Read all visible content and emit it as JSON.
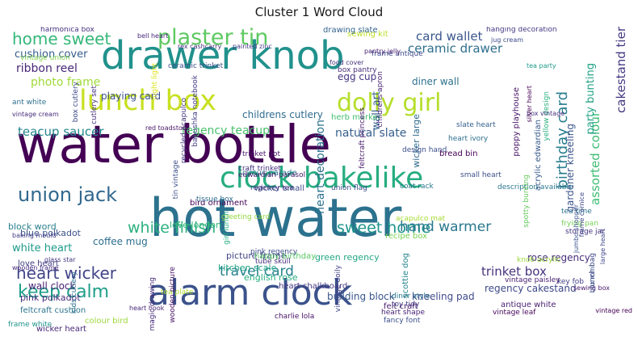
{
  "chart_data": {
    "type": "wordcloud",
    "title": "Cluster 1 Word Cloud",
    "colormap": "viridis",
    "background": "#ffffff",
    "words": [
      {
        "text": "hot water",
        "weight": 100,
        "color": "#2c728e"
      },
      {
        "text": "water bottle",
        "weight": 98,
        "color": "#440154"
      },
      {
        "text": "drawer knob",
        "weight": 70,
        "color": "#21918c"
      },
      {
        "text": "alarm clock",
        "weight": 63,
        "color": "#3b528b"
      },
      {
        "text": "clock bakelike",
        "weight": 50,
        "color": "#27ad81"
      },
      {
        "text": "lunch box",
        "weight": 48,
        "color": "#c8e020"
      },
      {
        "text": "dolly girl",
        "weight": 40,
        "color": "#b5de2b"
      },
      {
        "text": "plaster tin",
        "weight": 35,
        "color": "#5ec962"
      },
      {
        "text": "union jack",
        "weight": 30,
        "color": "#31688e"
      },
      {
        "text": "keep calm",
        "weight": 26,
        "color": "#1f9e89"
      },
      {
        "text": "heart wicker",
        "weight": 23,
        "color": "#414487"
      },
      {
        "text": "home sweet",
        "weight": 22,
        "color": "#35b779"
      },
      {
        "text": "white finish",
        "weight": 20,
        "color": "#2db27d"
      },
      {
        "text": "sweet home",
        "weight": 20,
        "color": "#1f948c"
      },
      {
        "text": "travel card",
        "weight": 18,
        "color": "#26828e"
      },
      {
        "text": "hand warmer",
        "weight": 17,
        "color": "#2a788e"
      },
      {
        "text": "birthday card",
        "weight": 19,
        "color": "#287d8e"
      },
      {
        "text": "card wallet",
        "weight": 13,
        "color": "#39568c"
      },
      {
        "text": "ceramic drawer",
        "weight": 13,
        "color": "#2e6f8e"
      },
      {
        "text": "cakestand tier",
        "weight": 14,
        "color": "#443a83"
      },
      {
        "text": "trinket box",
        "weight": 14,
        "color": "#46327e"
      },
      {
        "text": "regency teacup",
        "weight": 12,
        "color": "#4ac16d"
      },
      {
        "text": "teacup saucer",
        "weight": 13,
        "color": "#24868e"
      },
      {
        "text": "photo frame",
        "weight": 12,
        "color": "#a0da39"
      },
      {
        "text": "ribbon reel",
        "weight": 12,
        "color": "#482677"
      },
      {
        "text": "cushion cover",
        "weight": 11,
        "color": "#365d8d"
      },
      {
        "text": "natural slate",
        "weight": 12,
        "color": "#355f8d"
      },
      {
        "text": "heart decoration",
        "weight": 12,
        "color": "#2c728e"
      },
      {
        "text": "assorted colour",
        "weight": 13,
        "color": "#3dbc74"
      },
      {
        "text": "white heart",
        "weight": 11,
        "color": "#1e9b8a"
      },
      {
        "text": "party bunting",
        "weight": 10,
        "color": "#20a386"
      },
      {
        "text": "gardener kneeling",
        "weight": 9,
        "color": "#3a538b"
      },
      {
        "text": "childrens cutlery",
        "weight": 9,
        "color": "#2f6c8e"
      },
      {
        "text": "regency cakestand",
        "weight": 9,
        "color": "#3e4989"
      },
      {
        "text": "rose regency",
        "weight": 9,
        "color": "#472d7b"
      },
      {
        "text": "wall art",
        "weight": 10,
        "color": "#34618d"
      },
      {
        "text": "playing card",
        "weight": 8,
        "color": "#3b518b"
      },
      {
        "text": "coffee mug",
        "weight": 9,
        "color": "#2e6e8e"
      },
      {
        "text": "wall clock",
        "weight": 9,
        "color": "#482173"
      },
      {
        "text": "egg cup",
        "weight": 8,
        "color": "#453581"
      },
      {
        "text": "diner wall",
        "weight": 8,
        "color": "#2d718e"
      },
      {
        "text": "kneeling pad",
        "weight": 8,
        "color": "#3f4889"
      },
      {
        "text": "building block",
        "weight": 8,
        "color": "#39558c"
      },
      {
        "text": "blue polkadot",
        "weight": 7,
        "color": "#3b528b"
      },
      {
        "text": "pink polkadot",
        "weight": 7,
        "color": "#472c7a"
      },
      {
        "text": "block word",
        "weight": 7,
        "color": "#277f8e"
      },
      {
        "text": "love london",
        "weight": 7,
        "color": "#31b57b"
      },
      {
        "text": "kitchen scale",
        "weight": 7,
        "color": "#21a585"
      },
      {
        "text": "picture frame",
        "weight": 7,
        "color": "#404688"
      },
      {
        "text": "green regency",
        "weight": 7,
        "color": "#22a884"
      },
      {
        "text": "english rose",
        "weight": 7,
        "color": "#26ad81"
      },
      {
        "text": "bird ornament",
        "weight": 6,
        "color": "#440154"
      },
      {
        "text": "circus parade",
        "weight": 6,
        "color": "#2a768e"
      },
      {
        "text": "wicker small",
        "weight": 6,
        "color": "#3e4c8a"
      },
      {
        "text": "wicker large",
        "weight": 7,
        "color": "#2f6b8e"
      },
      {
        "text": "herb marker",
        "weight": 6,
        "color": "#44bf70"
      },
      {
        "text": "sewing kit",
        "weight": 6,
        "color": "#bddf26"
      },
      {
        "text": "drawing slate",
        "weight": 5,
        "color": "#33638d"
      },
      {
        "text": "wicker heart",
        "weight": 5,
        "color": "#482979"
      },
      {
        "text": "love heart",
        "weight": 5,
        "color": "#433e85"
      },
      {
        "text": "feltcraft cushion",
        "weight": 5,
        "color": "#2b748e"
      },
      {
        "text": "heart chalkboard",
        "weight": 5,
        "color": "#453882"
      },
      {
        "text": "colour bird",
        "weight": 5,
        "color": "#9dd93b"
      },
      {
        "text": "antique white",
        "weight": 5,
        "color": "#481f70"
      },
      {
        "text": "recipe box",
        "weight": 5,
        "color": "#7ad151"
      },
      {
        "text": "happy birthday",
        "weight": 5,
        "color": "#58c765"
      },
      {
        "text": "tea time",
        "weight": 4,
        "color": "#2c728e"
      },
      {
        "text": "pink regency",
        "weight": 4,
        "color": "#3e4a89"
      },
      {
        "text": "scottie dog",
        "weight": 5,
        "color": "#25858e"
      },
      {
        "text": "felt craft",
        "weight": 5,
        "color": "#481c6e"
      },
      {
        "text": "bread bin",
        "weight": 5,
        "color": "#440154"
      },
      {
        "text": "frame white",
        "weight": 4,
        "color": "#1f958b"
      },
      {
        "text": "harmonica box",
        "weight": 4,
        "color": "#46337f"
      },
      {
        "text": "poppy playhouse",
        "weight": 5,
        "color": "#471365"
      },
      {
        "text": "acrylic edwardian",
        "weight": 5,
        "color": "#38598c"
      },
      {
        "text": "tin vintage",
        "weight": 4,
        "color": "#3c4f8a"
      },
      {
        "text": "recycled acapulco",
        "weight": 4,
        "color": "#453781"
      },
      {
        "text": "regency tea",
        "weight": 4,
        "color": "#443983"
      },
      {
        "text": "union flag",
        "weight": 4,
        "color": "#3d4e8a"
      },
      {
        "text": "coat rack",
        "weight": 4,
        "color": "#2a778e"
      },
      {
        "text": "key fob",
        "weight": 4,
        "color": "#424186"
      },
      {
        "text": "craft trinket",
        "weight": 4,
        "color": "#46307e"
      },
      {
        "text": "trinket pot",
        "weight": 4,
        "color": "#481769"
      },
      {
        "text": "slate heart",
        "weight": 4,
        "color": "#34618d"
      },
      {
        "text": "design hand",
        "weight": 3,
        "color": "#3c508b"
      },
      {
        "text": "edwardian parasol",
        "weight": 4,
        "color": "#481b6d"
      },
      {
        "text": "tissue box",
        "weight": 4,
        "color": "#2e6e8e"
      },
      {
        "text": "description available",
        "weight": 4,
        "color": "#2a788e"
      },
      {
        "text": "frying pan",
        "weight": 4,
        "color": "#75d054"
      },
      {
        "text": "knob acrylic",
        "weight": 4,
        "color": "#9bd93c"
      },
      {
        "text": "tea plate",
        "weight": 3,
        "color": "#addc30"
      },
      {
        "text": "box pantry",
        "weight": 4,
        "color": "#472e7c"
      },
      {
        "text": "cutlery set",
        "weight": 4,
        "color": "#46327e"
      },
      {
        "text": "yellow design",
        "weight": 3,
        "color": "#2ab07f"
      },
      {
        "text": "spotty bunting",
        "weight": 3,
        "color": "#65cb5e"
      },
      {
        "text": "frame antique",
        "weight": 3,
        "color": "#3e4a89"
      },
      {
        "text": "ceramic trinket",
        "weight": 4,
        "color": "#3b528b"
      },
      {
        "text": "babushka notebook",
        "weight": 3,
        "color": "#433e85"
      },
      {
        "text": "night light",
        "weight": 4,
        "color": "#dde318"
      },
      {
        "text": "box cutlery",
        "weight": 4,
        "color": "#3e4989"
      },
      {
        "text": "ant white",
        "weight": 3,
        "color": "#2e6f8e"
      },
      {
        "text": "vintage union",
        "weight": 3,
        "color": "#7fd34e"
      },
      {
        "text": "childrens apron",
        "weight": 3,
        "color": "#482576"
      },
      {
        "text": "feltcraft princess",
        "weight": 3,
        "color": "#481a6c"
      },
      {
        "text": "greeting card",
        "weight": 3,
        "color": "#93d741"
      },
      {
        "text": "girl lunch",
        "weight": 3,
        "color": "#25ac82"
      },
      {
        "text": "wooden picture",
        "weight": 3,
        "color": "#471063"
      },
      {
        "text": "magic drawing",
        "weight": 3,
        "color": "#472a7a"
      },
      {
        "text": "vintage doily",
        "weight": 3,
        "color": "#414287"
      },
      {
        "text": "diner style",
        "weight": 3,
        "color": "#2b758e"
      },
      {
        "text": "toy tidy",
        "weight": 3,
        "color": "#443b84"
      },
      {
        "text": "heart shape",
        "weight": 3,
        "color": "#482475"
      },
      {
        "text": "fancy font",
        "weight": 3,
        "color": "#3c4f8a"
      },
      {
        "text": "tube skull",
        "weight": 3,
        "color": "#472f7d"
      },
      {
        "text": "vintage paisley",
        "weight": 3,
        "color": "#482071"
      },
      {
        "text": "storage jar",
        "weight": 3,
        "color": "#463480"
      },
      {
        "text": "vintage leaf",
        "weight": 3,
        "color": "#46085c"
      },
      {
        "text": "lunch bag",
        "weight": 3,
        "color": "#3f4788"
      },
      {
        "text": "kids cutlery",
        "weight": 3,
        "color": "#2c718e"
      },
      {
        "text": "charlie lola",
        "weight": 3,
        "color": "#471164"
      },
      {
        "text": "acapulco mat",
        "weight": 3,
        "color": "#a8db34"
      },
      {
        "text": "small heart",
        "weight": 3,
        "color": "#3c4f8a"
      },
      {
        "text": "heart ivory",
        "weight": 2,
        "color": "#2e6e8e"
      },
      {
        "text": "hanging decoration",
        "weight": 3,
        "color": "#453882"
      },
      {
        "text": "jug cream",
        "weight": 2,
        "color": "#3d4d8a"
      },
      {
        "text": "bell heart",
        "weight": 2,
        "color": "#482878"
      },
      {
        "text": "rex cashcarry",
        "weight": 2,
        "color": "#46307e"
      },
      {
        "text": "painted zinc",
        "weight": 2,
        "color": "#433d84"
      },
      {
        "text": "food cover",
        "weight": 2,
        "color": "#46327e"
      },
      {
        "text": "pantry jelly",
        "weight": 2,
        "color": "#482273"
      },
      {
        "text": "vintage cream",
        "weight": 2,
        "color": "#472c7a"
      },
      {
        "text": "red toadstool",
        "weight": 2,
        "color": "#481467"
      },
      {
        "text": "box vintage",
        "weight": 2,
        "color": "#46327e"
      },
      {
        "text": "tea party",
        "weight": 2,
        "color": "#1f9a8a"
      },
      {
        "text": "silver heart",
        "weight": 2,
        "color": "#440154"
      },
      {
        "text": "frame cornice",
        "weight": 2,
        "color": "#3f4889"
      },
      {
        "text": "jumbo shopper",
        "weight": 2,
        "color": "#3a548c"
      },
      {
        "text": "glass star",
        "weight": 2,
        "color": "#453781"
      },
      {
        "text": "baking mould",
        "weight": 2,
        "color": "#433e85"
      },
      {
        "text": "wooden frame",
        "weight": 2,
        "color": "#472f7d"
      },
      {
        "text": "sewing box",
        "weight": 2,
        "color": "#481a6c"
      },
      {
        "text": "box mini",
        "weight": 2,
        "color": "#3b528b"
      },
      {
        "text": "large heart",
        "weight": 2,
        "color": "#404588"
      },
      {
        "text": "heart hook",
        "weight": 2,
        "color": "#482677"
      },
      {
        "text": "vintage red",
        "weight": 2,
        "color": "#440154"
      },
      {
        "text": "bunting",
        "weight": 2,
        "color": "#6ccd5a"
      }
    ]
  }
}
